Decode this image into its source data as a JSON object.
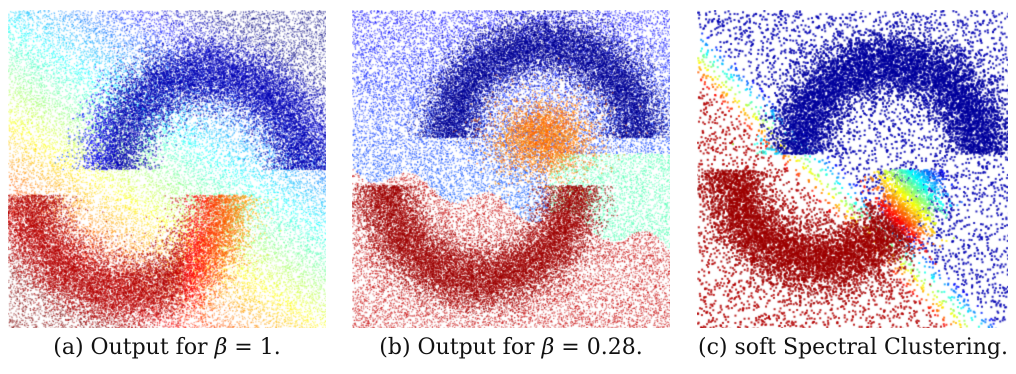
{
  "figures": [
    {
      "caption_prefix": "(a) Output for ",
      "caption_symbol": "β",
      "caption_suffix": " = 1.",
      "style": "smooth"
    },
    {
      "caption_prefix": "(b) Output for ",
      "caption_symbol": "β",
      "caption_suffix": " = 0.28.",
      "style": "sharp"
    },
    {
      "caption_prefix": "(c) soft Spectral Clustering.",
      "caption_symbol": "",
      "caption_suffix": "",
      "style": "spectral"
    }
  ],
  "colormap": "jet",
  "colors": {
    "dark_blue": "#00008b",
    "dark_red": "#8b0000"
  }
}
